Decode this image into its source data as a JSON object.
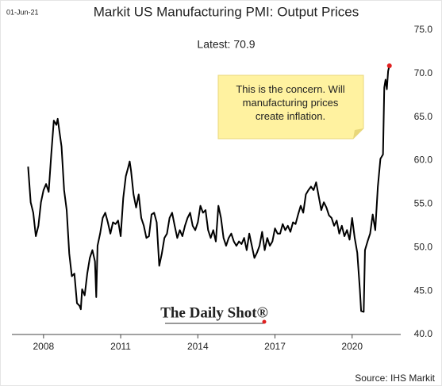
{
  "date_stamp": "01-Jun-21",
  "chart_data": {
    "type": "line",
    "title": "Markit US Manufacturing PMI: Output Prices",
    "subtitle": "Latest:  70.9",
    "annotation": [
      "This is the concern. Will",
      "manufacturing prices",
      "create inflation."
    ],
    "source": "Source: IHS Markit",
    "logo": "The Daily Shot®",
    "x": [
      2007.4,
      2007.5,
      2007.6,
      2007.7,
      2007.8,
      2007.9,
      2008.0,
      2008.1,
      2008.2,
      2008.3,
      2008.4,
      2008.5,
      2008.55,
      2008.7,
      2008.8,
      2008.9,
      2009.0,
      2009.1,
      2009.2,
      2009.3,
      2009.4,
      2009.45,
      2009.5,
      2009.6,
      2009.7,
      2009.8,
      2009.9,
      2010.0,
      2010.05,
      2010.1,
      2010.2,
      2010.3,
      2010.4,
      2010.5,
      2010.6,
      2010.7,
      2010.8,
      2010.9,
      2011.0,
      2011.1,
      2011.2,
      2011.3,
      2011.35,
      2011.4,
      2011.5,
      2011.6,
      2011.7,
      2011.8,
      2011.9,
      2012.0,
      2012.1,
      2012.2,
      2012.3,
      2012.4,
      2012.5,
      2012.6,
      2012.7,
      2012.8,
      2012.9,
      2013.0,
      2013.1,
      2013.2,
      2013.3,
      2013.4,
      2013.5,
      2013.6,
      2013.7,
      2013.8,
      2013.9,
      2014.0,
      2014.1,
      2014.2,
      2014.3,
      2014.4,
      2014.5,
      2014.6,
      2014.7,
      2014.8,
      2014.9,
      2015.0,
      2015.1,
      2015.2,
      2015.3,
      2015.4,
      2015.5,
      2015.6,
      2015.7,
      2015.8,
      2015.9,
      2016.0,
      2016.1,
      2016.2,
      2016.3,
      2016.4,
      2016.5,
      2016.6,
      2016.7,
      2016.8,
      2016.9,
      2017.0,
      2017.1,
      2017.2,
      2017.3,
      2017.4,
      2017.5,
      2017.6,
      2017.7,
      2017.8,
      2017.9,
      2018.0,
      2018.1,
      2018.2,
      2018.3,
      2018.4,
      2018.5,
      2018.6,
      2018.7,
      2018.8,
      2018.9,
      2019.0,
      2019.1,
      2019.2,
      2019.3,
      2019.4,
      2019.5,
      2019.6,
      2019.7,
      2019.8,
      2019.9,
      2020.0,
      2020.1,
      2020.2,
      2020.3,
      2020.35,
      2020.45,
      2020.5,
      2020.6,
      2020.7,
      2020.8,
      2020.9,
      2021.0,
      2021.1,
      2021.2,
      2021.25,
      2021.3,
      2021.35,
      2021.4,
      2021.45
    ],
    "series": [
      {
        "name": "Output Prices",
        "color": "#000000",
        "values": [
          59.3,
          55.2,
          54.0,
          51.3,
          52.5,
          55.2,
          56.6,
          57.3,
          56.4,
          60.7,
          64.6,
          64.1,
          64.8,
          61.6,
          56.6,
          54.3,
          49.3,
          46.7,
          47.0,
          43.6,
          43.3,
          42.9,
          45.2,
          44.5,
          47.0,
          48.8,
          49.7,
          48.4,
          44.3,
          50.2,
          51.6,
          53.4,
          54.0,
          52.9,
          51.6,
          52.9,
          52.7,
          53.1,
          51.3,
          55.7,
          58.2,
          59.3,
          59.9,
          58.9,
          56.1,
          54.6,
          56.1,
          53.4,
          52.5,
          51.1,
          51.3,
          53.8,
          54.0,
          52.9,
          47.9,
          49.3,
          51.1,
          51.6,
          53.4,
          54.0,
          52.5,
          51.1,
          52.0,
          51.3,
          52.5,
          53.4,
          54.0,
          52.5,
          52.0,
          52.9,
          54.8,
          54.0,
          54.3,
          52.0,
          51.1,
          52.0,
          50.7,
          54.8,
          53.4,
          51.1,
          50.2,
          51.1,
          51.6,
          50.7,
          50.2,
          50.7,
          50.4,
          51.1,
          49.7,
          51.6,
          50.2,
          48.8,
          49.4,
          50.2,
          51.8,
          49.7,
          51.1,
          50.2,
          50.7,
          52.2,
          51.6,
          51.6,
          52.7,
          52.0,
          52.5,
          51.8,
          52.9,
          52.7,
          53.8,
          54.8,
          54.0,
          56.1,
          56.6,
          57.0,
          56.6,
          57.5,
          55.9,
          54.3,
          55.2,
          54.6,
          53.7,
          53.4,
          52.5,
          53.1,
          51.6,
          52.5,
          51.3,
          52.0,
          50.9,
          53.4,
          51.1,
          49.4,
          45.2,
          42.7,
          42.6,
          49.7,
          50.7,
          51.6,
          53.8,
          52.0,
          57.0,
          60.2,
          60.7,
          68.4,
          69.3,
          68.2,
          70.3,
          70.9
        ]
      }
    ],
    "last_point_color": "#e02020",
    "xlim": [
      2006.77,
      2021.89
    ],
    "xticks": [
      2008,
      2011,
      2014,
      2017,
      2020
    ],
    "ylim": [
      40,
      75
    ],
    "yticks": [
      {
        "value": 40,
        "label": "40.0"
      },
      {
        "value": 45,
        "label": "45.0"
      },
      {
        "value": 50,
        "label": "50.0"
      },
      {
        "value": 55,
        "label": "55.0"
      },
      {
        "value": 60,
        "label": "60.0"
      },
      {
        "value": 65,
        "label": "65.0"
      },
      {
        "value": 70,
        "label": "70.0"
      },
      {
        "value": 75,
        "label": "75.0"
      }
    ],
    "grid": false
  }
}
